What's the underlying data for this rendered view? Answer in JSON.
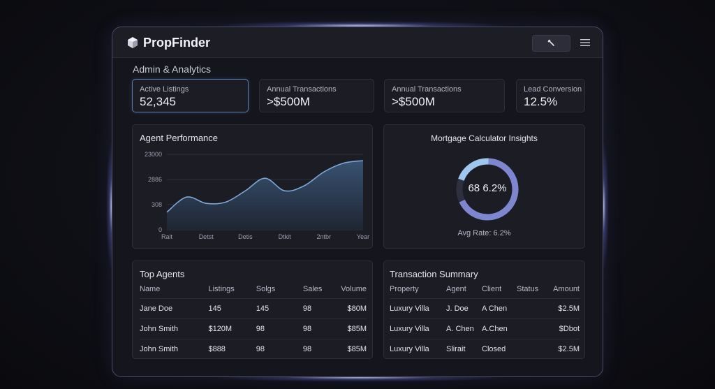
{
  "app": {
    "name": "PropFinder"
  },
  "header": {
    "tool_icon": "wrench-icon",
    "menu_icon": "hamburger-menu-icon"
  },
  "section": {
    "title": "Admin & Analytics"
  },
  "stats": [
    {
      "label": "Active Listings",
      "value": "52,345"
    },
    {
      "label": "Annual Transactions",
      "value": ">$500M"
    },
    {
      "label": "Annual Transactions",
      "value": ">$500M"
    },
    {
      "label": "Lead Conversion",
      "value": "12.5%"
    }
  ],
  "agent_performance": {
    "title": "Agent Performance",
    "y_ticks": [
      "23000",
      "2886",
      "308",
      "0"
    ],
    "x_ticks": [
      "Rait",
      "Detst",
      "Detis",
      "Dtkit",
      "2ntbr",
      "Year"
    ]
  },
  "chart_data": {
    "type": "area",
    "title": "Agent Performance",
    "xlabel": "",
    "ylabel": "",
    "categories": [
      "Rait",
      "Detst",
      "Detis",
      "Dtkit",
      "2ntbr",
      "Year"
    ],
    "y_tick_labels": [
      "23000",
      "2886",
      "308",
      "0"
    ],
    "y_axis_levels": [
      0,
      1,
      2,
      3
    ],
    "x": [
      0,
      0.5,
      1,
      1.5,
      2,
      2.5,
      3,
      3.5,
      4,
      4.5,
      5
    ],
    "values": [
      0.7,
      1.3,
      1.05,
      1.1,
      1.55,
      2.05,
      1.55,
      1.75,
      2.3,
      2.65,
      2.75
    ],
    "ylim": [
      0,
      3
    ],
    "grid": true,
    "colors": {
      "line": "#7fa6d8",
      "fill_top": "#3a5575",
      "fill_bottom": "#1f2735"
    }
  },
  "mortgage": {
    "title": "Mortgage Calculator Insights",
    "center_text": "68 6.2%",
    "caption": "Avg Rate: 6.2%",
    "ring_fraction": 0.68,
    "colors": {
      "arc": "#7f86d0",
      "arc_accent": "#9fc6ec",
      "track": "#2e3040"
    }
  },
  "top_agents": {
    "title": "Top Agents",
    "columns": [
      "Name",
      "Listings",
      "Solgs",
      "Sales",
      "Volume"
    ],
    "rows": [
      [
        "Jane Doe",
        "145",
        "145",
        "98",
        "$80M"
      ],
      [
        "John Smith",
        "$120M",
        "98",
        "98",
        "$85M"
      ],
      [
        "John Smith",
        "$888",
        "98",
        "98",
        "$85M"
      ]
    ]
  },
  "transactions": {
    "title": "Transaction Summary",
    "columns": [
      "Property",
      "Agent",
      "Client",
      "Status",
      "Amount"
    ],
    "rows": [
      [
        "Luxury Villa",
        "J. Doe",
        "A Chen",
        "",
        "$2.5M"
      ],
      [
        "Luxury Villa",
        "A. Chen",
        "A.Chen",
        "",
        "$Dbot"
      ],
      [
        "Luxury Villa",
        "Slirait",
        "Closed",
        "",
        "$2.5M"
      ]
    ]
  }
}
